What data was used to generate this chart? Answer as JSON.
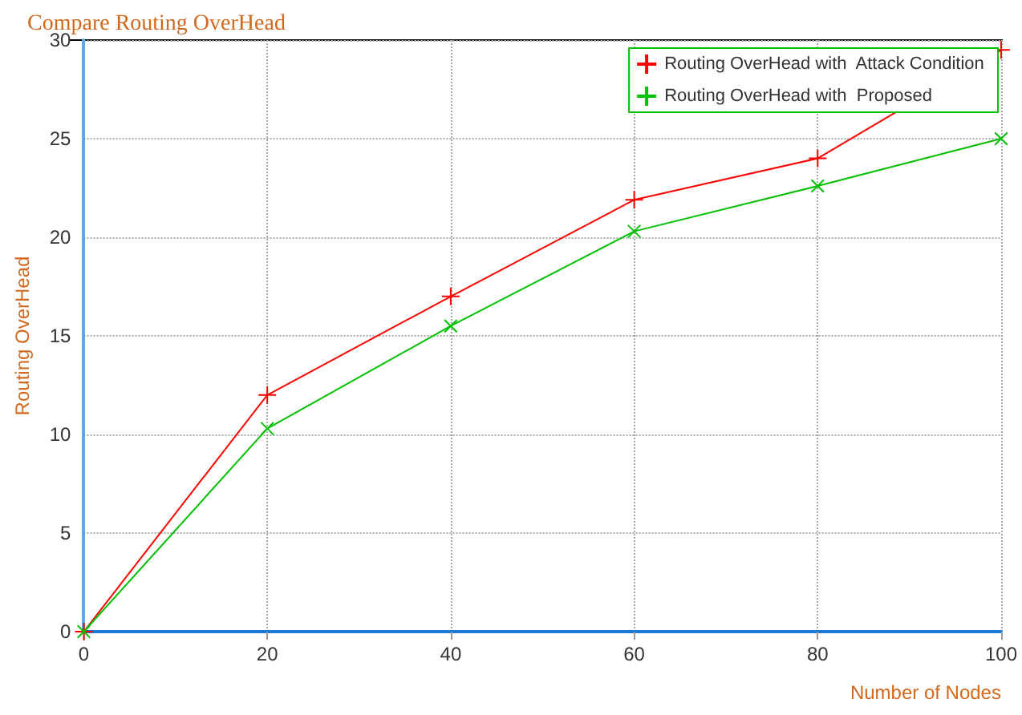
{
  "chart_data": {
    "type": "line",
    "title": "Compare Routing OverHead",
    "xlabel": "Number of Nodes",
    "ylabel": "Routing OverHead",
    "x": [
      0,
      20,
      40,
      60,
      80,
      100
    ],
    "series": [
      {
        "name": "Routing OverHead with  Attack Condition",
        "color": "#ff0000",
        "values": [
          0,
          12,
          17,
          21.9,
          24,
          29.5
        ]
      },
      {
        "name": "Routing OverHead with  Proposed",
        "color": "#00c000",
        "values": [
          0,
          10.3,
          15.5,
          20.3,
          22.6,
          25
        ]
      }
    ],
    "xlim": [
      0,
      100
    ],
    "xticks": [
      0,
      20,
      40,
      60,
      80,
      100
    ],
    "ylim": [
      0,
      30
    ],
    "yticks": [
      0,
      5,
      10,
      15,
      20,
      25,
      30
    ],
    "grid": true,
    "legend": "top right",
    "marker": "cross",
    "line_style": "solid"
  }
}
